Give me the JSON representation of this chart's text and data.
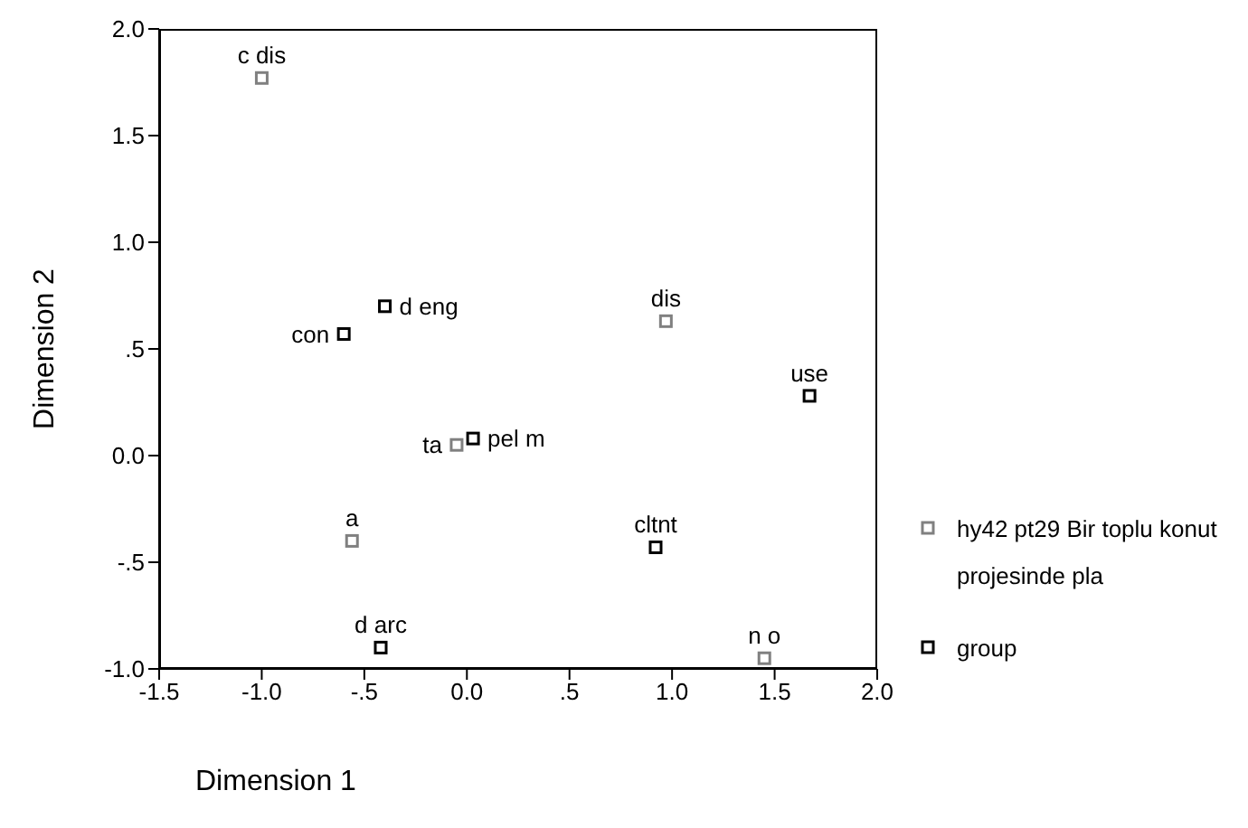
{
  "chart_data": {
    "type": "scatter",
    "xlabel": "Dimension 1",
    "ylabel": "Dimension 2",
    "marker": "square",
    "legend": "right",
    "grid": false,
    "xlim": [
      -1.5,
      2.0
    ],
    "ylim": [
      -1.0,
      2.0
    ],
    "xticks": [
      {
        "value": -1.5,
        "label": "-1.5"
      },
      {
        "value": -1.0,
        "label": "-1.0"
      },
      {
        "value": -0.5,
        "label": "-.5"
      },
      {
        "value": 0,
        "label": "0.0"
      },
      {
        "value": 0.5,
        "label": ".5"
      },
      {
        "value": 1.0,
        "label": "1.0"
      },
      {
        "value": 1.5,
        "label": "1.5"
      },
      {
        "value": 2.0,
        "label": "2.0"
      }
    ],
    "yticks": [
      {
        "value": -1.0,
        "label": "-1.0"
      },
      {
        "value": -0.5,
        "label": "-.5"
      },
      {
        "value": 0,
        "label": "0.0"
      },
      {
        "value": 0.5,
        "label": ".5"
      },
      {
        "value": 1.0,
        "label": "1.0"
      },
      {
        "value": 1.5,
        "label": "1.5"
      },
      {
        "value": 2.0,
        "label": "2.0"
      }
    ],
    "series": [
      {
        "name": "hy42 pt29 Bir toplu konut projesinde pla",
        "color": "#808080",
        "x": [
          -1.0,
          -0.05,
          0.97,
          -0.56,
          1.45
        ],
        "values": [
          1.77,
          0.05,
          0.63,
          -0.4,
          -0.95
        ]
      },
      {
        "name": "group",
        "color": "#000000",
        "x": [
          -0.6,
          -0.4,
          0.03,
          1.67,
          0.92,
          -0.42
        ],
        "values": [
          0.57,
          0.7,
          0.08,
          0.28,
          -0.43,
          -0.9
        ]
      }
    ],
    "annotations": [
      {
        "text": "c dis",
        "x": -1.0,
        "y": 1.77
      },
      {
        "text": "ta",
        "x": -0.05,
        "y": 0.05
      },
      {
        "text": "dis",
        "x": 0.97,
        "y": 0.63
      },
      {
        "text": "a",
        "x": -0.56,
        "y": -0.4
      },
      {
        "text": "n o",
        "x": 1.45,
        "y": -0.95
      },
      {
        "text": "con",
        "x": -0.6,
        "y": 0.57
      },
      {
        "text": "d eng",
        "x": -0.4,
        "y": 0.7
      },
      {
        "text": "pel m",
        "x": 0.03,
        "y": 0.08
      },
      {
        "text": "use",
        "x": 1.67,
        "y": 0.28
      },
      {
        "text": "cltnt",
        "x": 0.92,
        "y": -0.43
      },
      {
        "text": "d arc",
        "x": -0.42,
        "y": -0.9
      }
    ]
  }
}
